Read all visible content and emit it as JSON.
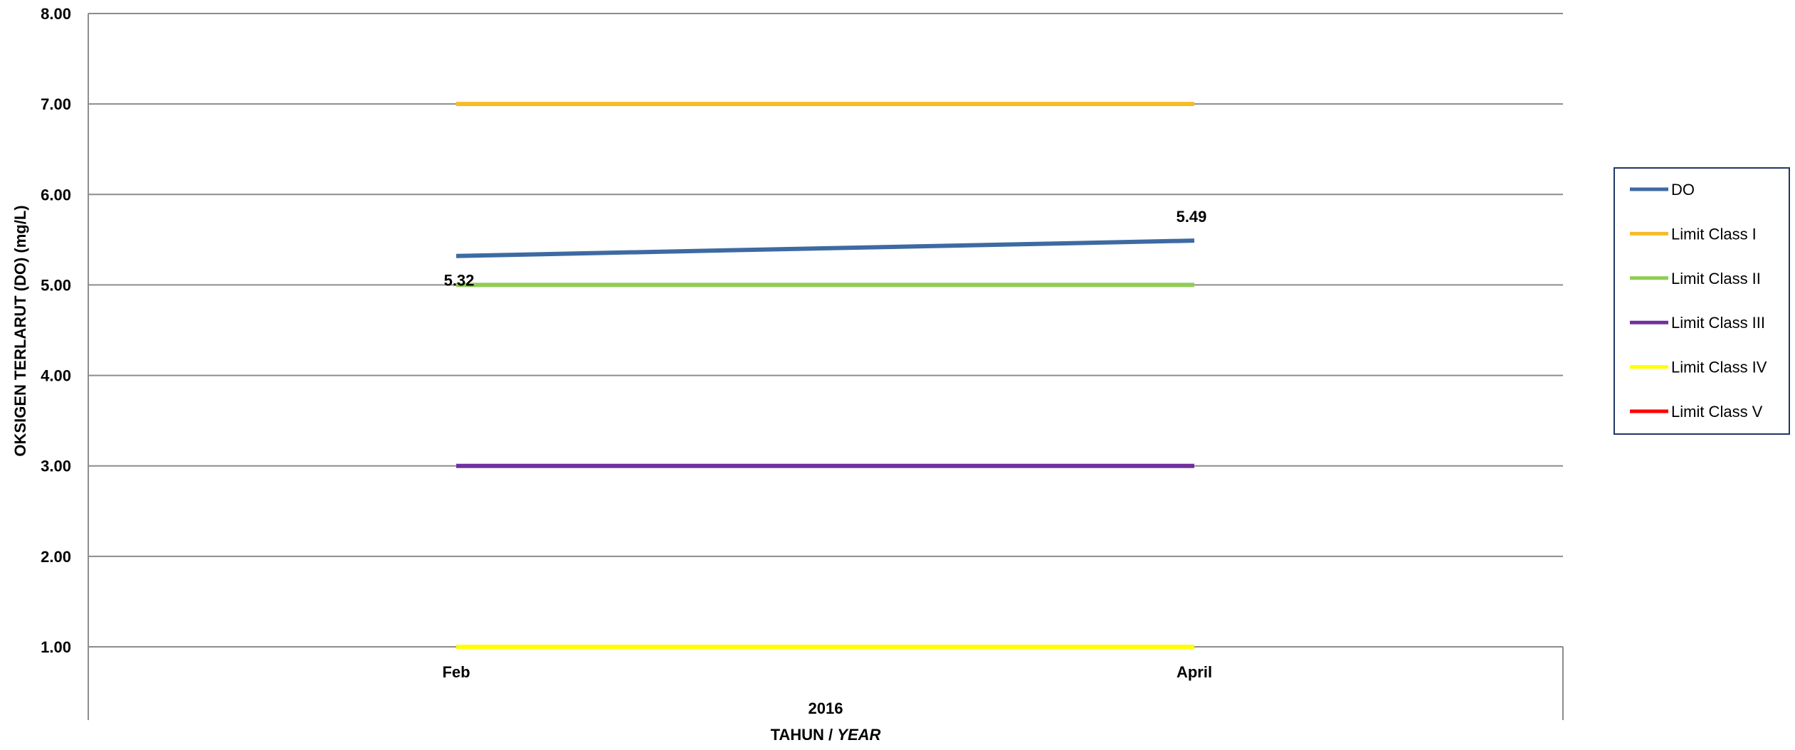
{
  "chart_data": {
    "type": "line",
    "categories": [
      "Feb",
      "April"
    ],
    "group_label": "2016",
    "xlabel": {
      "main": "TAHUN / ",
      "italic": "YEAR"
    },
    "ylabel": "OKSIGEN TERLARUT (DO) (mg/L)",
    "ylim": [
      1,
      8
    ],
    "yticks": [
      "1.00",
      "2.00",
      "3.00",
      "4.00",
      "5.00",
      "6.00",
      "7.00",
      "8.00"
    ],
    "grid": true,
    "legend_position": "right",
    "series": [
      {
        "name": "DO",
        "values": [
          5.32,
          5.49
        ],
        "labels": [
          "5.32",
          "5.49"
        ],
        "color": "#3e6aa2"
      },
      {
        "name": "Limit Class I",
        "values": [
          7,
          7
        ],
        "color": "#f7bb27"
      },
      {
        "name": "Limit Class II",
        "values": [
          5,
          5
        ],
        "color": "#8fcd55"
      },
      {
        "name": "Limit Class III",
        "values": [
          3,
          3
        ],
        "color": "#7030a0"
      },
      {
        "name": "Limit Class IV",
        "values": [
          1,
          1
        ],
        "color": "#ffff00"
      },
      {
        "name": "Limit Class V",
        "values": [
          null,
          null
        ],
        "color": "#ff0000"
      }
    ]
  }
}
